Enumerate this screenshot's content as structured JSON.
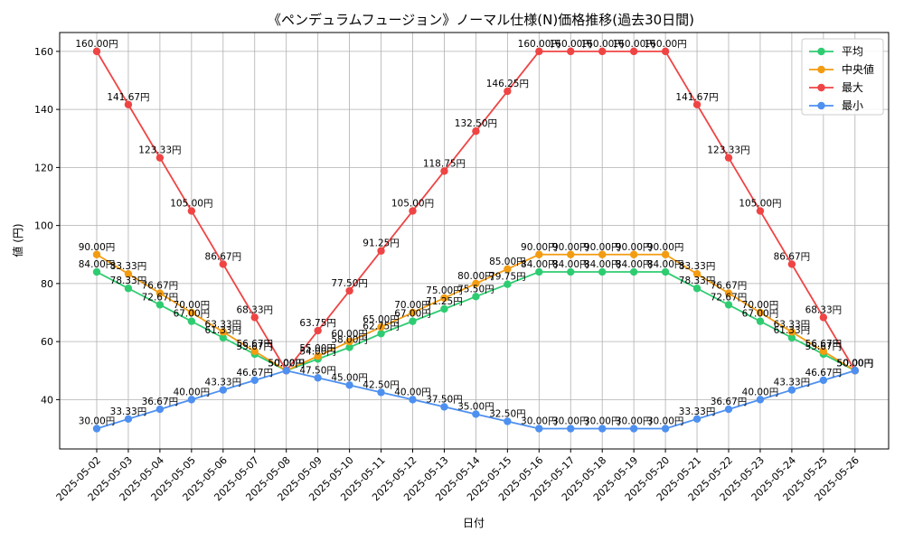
{
  "chart_data": {
    "type": "line",
    "title": "《ペンデュラムフュージョン》ノーマル仕様(N)価格推移(過去30日間)",
    "xlabel": "日付",
    "ylabel": "値 (円)",
    "ylim": [
      23,
      166.5
    ],
    "yticks": [
      40,
      60,
      80,
      100,
      120,
      140,
      160
    ],
    "grid": true,
    "legend_position": "top-right",
    "value_suffix": "円",
    "categories": [
      "2025-05-02",
      "2025-05-03",
      "2025-05-04",
      "2025-05-05",
      "2025-05-06",
      "2025-05-07",
      "2025-05-08",
      "2025-05-09",
      "2025-05-10",
      "2025-05-11",
      "2025-05-12",
      "2025-05-13",
      "2025-05-14",
      "2025-05-15",
      "2025-05-16",
      "2025-05-17",
      "2025-05-18",
      "2025-05-19",
      "2025-05-20",
      "2025-05-21",
      "2025-05-22",
      "2025-05-23",
      "2025-05-24",
      "2025-05-25",
      "2025-05-26"
    ],
    "series": [
      {
        "name": "平均",
        "color": "#2ecc71",
        "values": [
          84.0,
          78.33,
          72.67,
          67.0,
          61.33,
          55.67,
          50.0,
          54.0,
          58.0,
          62.75,
          67.0,
          71.25,
          75.5,
          79.75,
          84.0,
          84.0,
          84.0,
          84.0,
          84.0,
          78.33,
          72.67,
          67.0,
          61.33,
          55.67,
          50.0
        ]
      },
      {
        "name": "中央値",
        "color": "#f39c12",
        "values": [
          90.0,
          83.33,
          76.67,
          70.0,
          63.33,
          56.67,
          50.0,
          55.0,
          60.0,
          65.0,
          70.0,
          75.0,
          80.0,
          85.0,
          90.0,
          90.0,
          90.0,
          90.0,
          90.0,
          83.33,
          76.67,
          70.0,
          63.33,
          56.67,
          50.0
        ]
      },
      {
        "name": "最大",
        "color": "#ef4444",
        "values": [
          160.0,
          141.67,
          123.33,
          105.0,
          86.67,
          68.33,
          50.0,
          63.75,
          77.5,
          91.25,
          105.0,
          118.75,
          132.5,
          146.25,
          160.0,
          160.0,
          160.0,
          160.0,
          160.0,
          141.67,
          123.33,
          105.0,
          86.67,
          68.33,
          50.0
        ]
      },
      {
        "name": "最小",
        "color": "#4e90f0",
        "values": [
          30.0,
          33.33,
          36.67,
          40.0,
          43.33,
          46.67,
          50.0,
          47.5,
          45.0,
          42.5,
          40.0,
          37.5,
          35.0,
          32.5,
          30.0,
          30.0,
          30.0,
          30.0,
          30.0,
          33.33,
          36.67,
          40.0,
          43.33,
          46.67,
          50.0
        ]
      }
    ]
  }
}
